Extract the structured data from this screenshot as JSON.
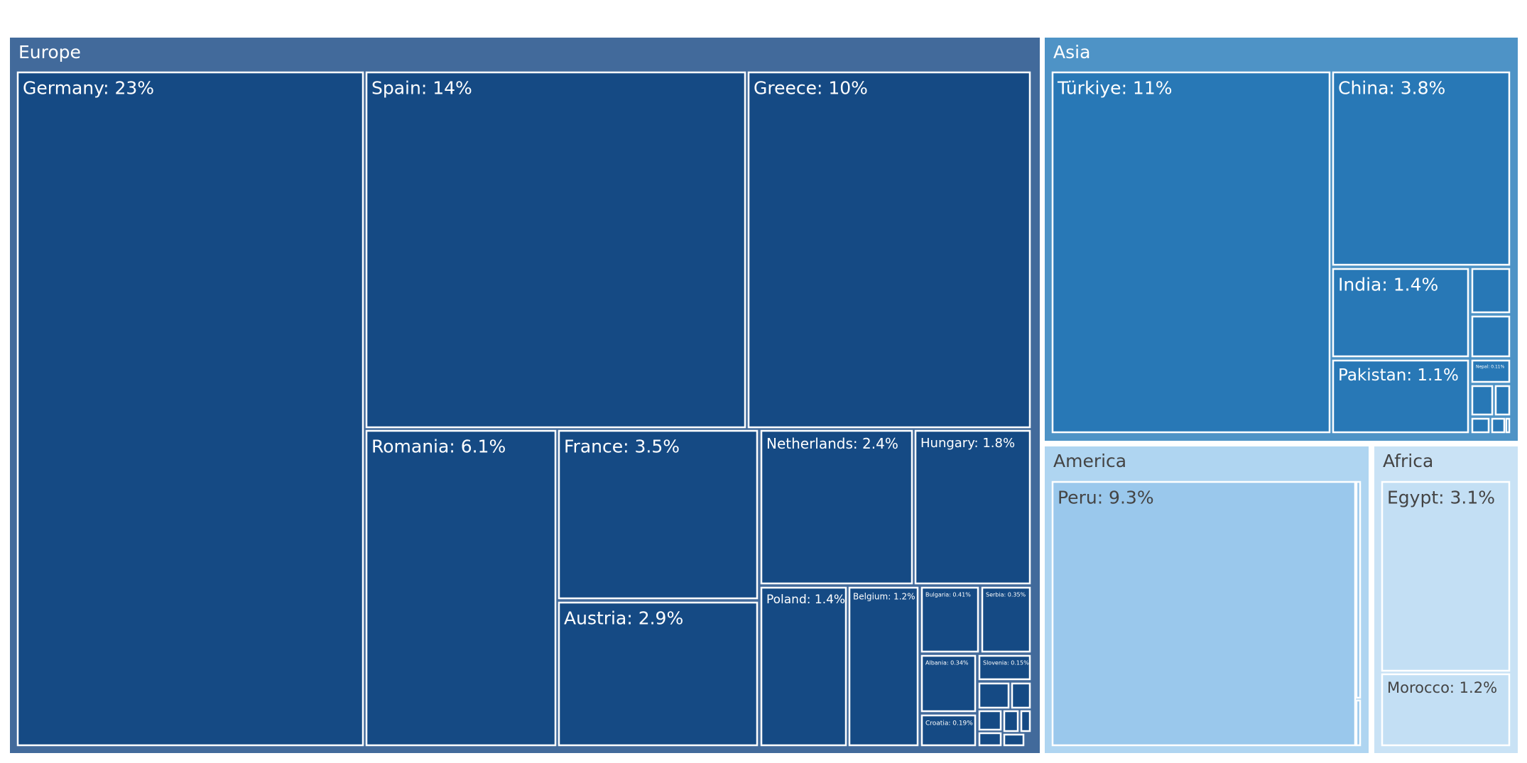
{
  "chart_data": {
    "type": "treemap",
    "colors": {
      "europe_header": "#426a9b",
      "europe_leaf": "#154a84",
      "asia_header": "#4e93c6",
      "asia_leaf": "#2878b6",
      "america_header": "#afd5f1",
      "america_leaf": "#9ac8ec",
      "africa_header": "#c9e2f5",
      "africa_leaf": "#c3dff4",
      "text_dark_bg": "#ffffff",
      "text_light_bg": "#444444",
      "border": "#ffffff"
    },
    "groups": [
      {
        "name": "Europe",
        "children": [
          {
            "name": "Germany",
            "label": "Germany: 23%"
          },
          {
            "name": "Spain",
            "label": "Spain: 14%"
          },
          {
            "name": "Greece",
            "label": "Greece: 10%"
          },
          {
            "name": "Romania",
            "label": "Romania: 6.1%"
          },
          {
            "name": "France",
            "label": "France: 3.5%"
          },
          {
            "name": "Austria",
            "label": "Austria: 2.9%"
          },
          {
            "name": "Netherlands",
            "label": "Netherlands: 2.4%"
          },
          {
            "name": "Hungary",
            "label": "Hungary: 1.8%"
          },
          {
            "name": "Poland",
            "label": "Poland: 1.4%"
          },
          {
            "name": "Belgium",
            "label": "Belgium: 1.2%"
          },
          {
            "name": "Bulgaria",
            "label": "Bulgaria: 0.41%"
          },
          {
            "name": "Serbia",
            "label": "Serbia: 0.35%"
          },
          {
            "name": "Albania",
            "label": "Albania: 0.34%"
          },
          {
            "name": "Slovenia",
            "label": "Slovenia: 0.15%"
          },
          {
            "name": "Croatia",
            "label": "Croatia: 0.19%"
          },
          {
            "name": "europe-small-1",
            "label": ""
          },
          {
            "name": "europe-small-2",
            "label": ""
          },
          {
            "name": "europe-small-3",
            "label": ""
          },
          {
            "name": "europe-small-4",
            "label": ""
          },
          {
            "name": "europe-small-5",
            "label": ""
          },
          {
            "name": "europe-small-6",
            "label": ""
          },
          {
            "name": "europe-small-7",
            "label": ""
          }
        ]
      },
      {
        "name": "Asia",
        "children": [
          {
            "name": "Türkiye",
            "label": "Türkiye: 11%"
          },
          {
            "name": "China",
            "label": "China: 3.8%"
          },
          {
            "name": "India",
            "label": "India: 1.4%"
          },
          {
            "name": "Pakistan",
            "label": "Pakistan: 1.1%"
          },
          {
            "name": "asia-small-1",
            "label": ""
          },
          {
            "name": "asia-small-2",
            "label": ""
          },
          {
            "name": "Nepal",
            "label": "Nepal: 0.11%"
          },
          {
            "name": "asia-small-3",
            "label": ""
          },
          {
            "name": "asia-small-4",
            "label": ""
          },
          {
            "name": "asia-small-5",
            "label": ""
          },
          {
            "name": "asia-small-6",
            "label": ""
          },
          {
            "name": "asia-small-7",
            "label": ""
          }
        ]
      },
      {
        "name": "America",
        "children": [
          {
            "name": "Peru",
            "label": "Peru: 9.3%"
          },
          {
            "name": "america-small-1",
            "label": ""
          },
          {
            "name": "america-small-2",
            "label": ""
          }
        ]
      },
      {
        "name": "Africa",
        "children": [
          {
            "name": "Egypt",
            "label": "Egypt: 3.1%"
          },
          {
            "name": "Morocco",
            "label": "Morocco: 1.2%"
          }
        ]
      }
    ]
  }
}
